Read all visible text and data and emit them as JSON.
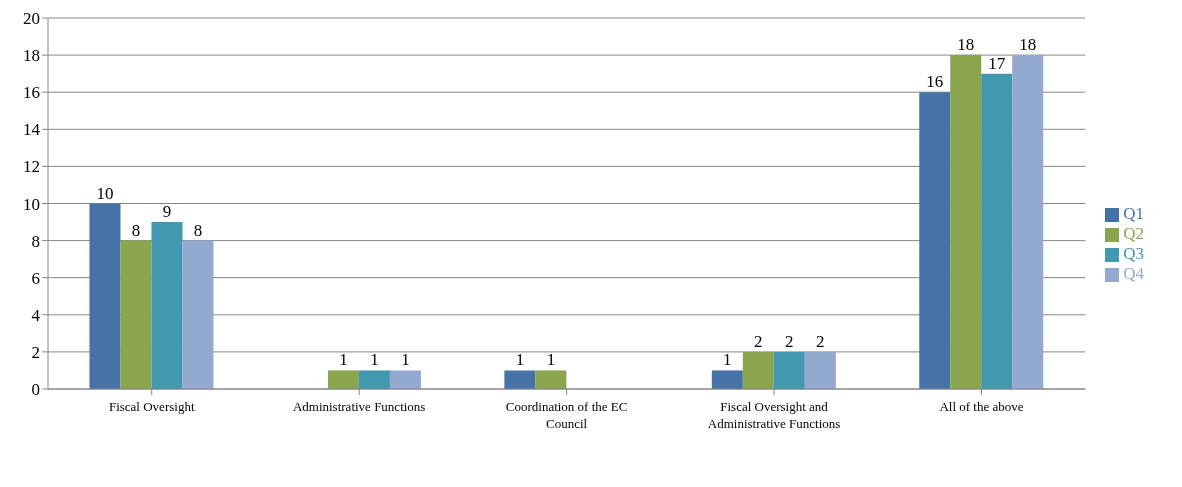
{
  "chart_data": {
    "type": "bar",
    "categories": [
      "Fiscal Oversight",
      "Administrative Functions",
      "Coordination of the EC Council",
      "Fiscal Oversight and Administrative Functions",
      "All of the above"
    ],
    "series": [
      {
        "name": "Q1",
        "color": "#4672a8",
        "values": [
          10,
          null,
          1,
          1,
          16
        ]
      },
      {
        "name": "Q2",
        "color": "#89a54e",
        "values": [
          8,
          1,
          1,
          2,
          18
        ]
      },
      {
        "name": "Q3",
        "color": "#4198af",
        "values": [
          9,
          1,
          null,
          2,
          17
        ]
      },
      {
        "name": "Q4",
        "color": "#93a9cf",
        "values": [
          8,
          1,
          null,
          2,
          18
        ]
      }
    ],
    "ylim": [
      0,
      20
    ],
    "yticks": [
      0,
      2,
      4,
      6,
      8,
      10,
      12,
      14,
      16,
      18,
      20
    ],
    "grid": "y",
    "legend": "right",
    "data_labels": true
  }
}
